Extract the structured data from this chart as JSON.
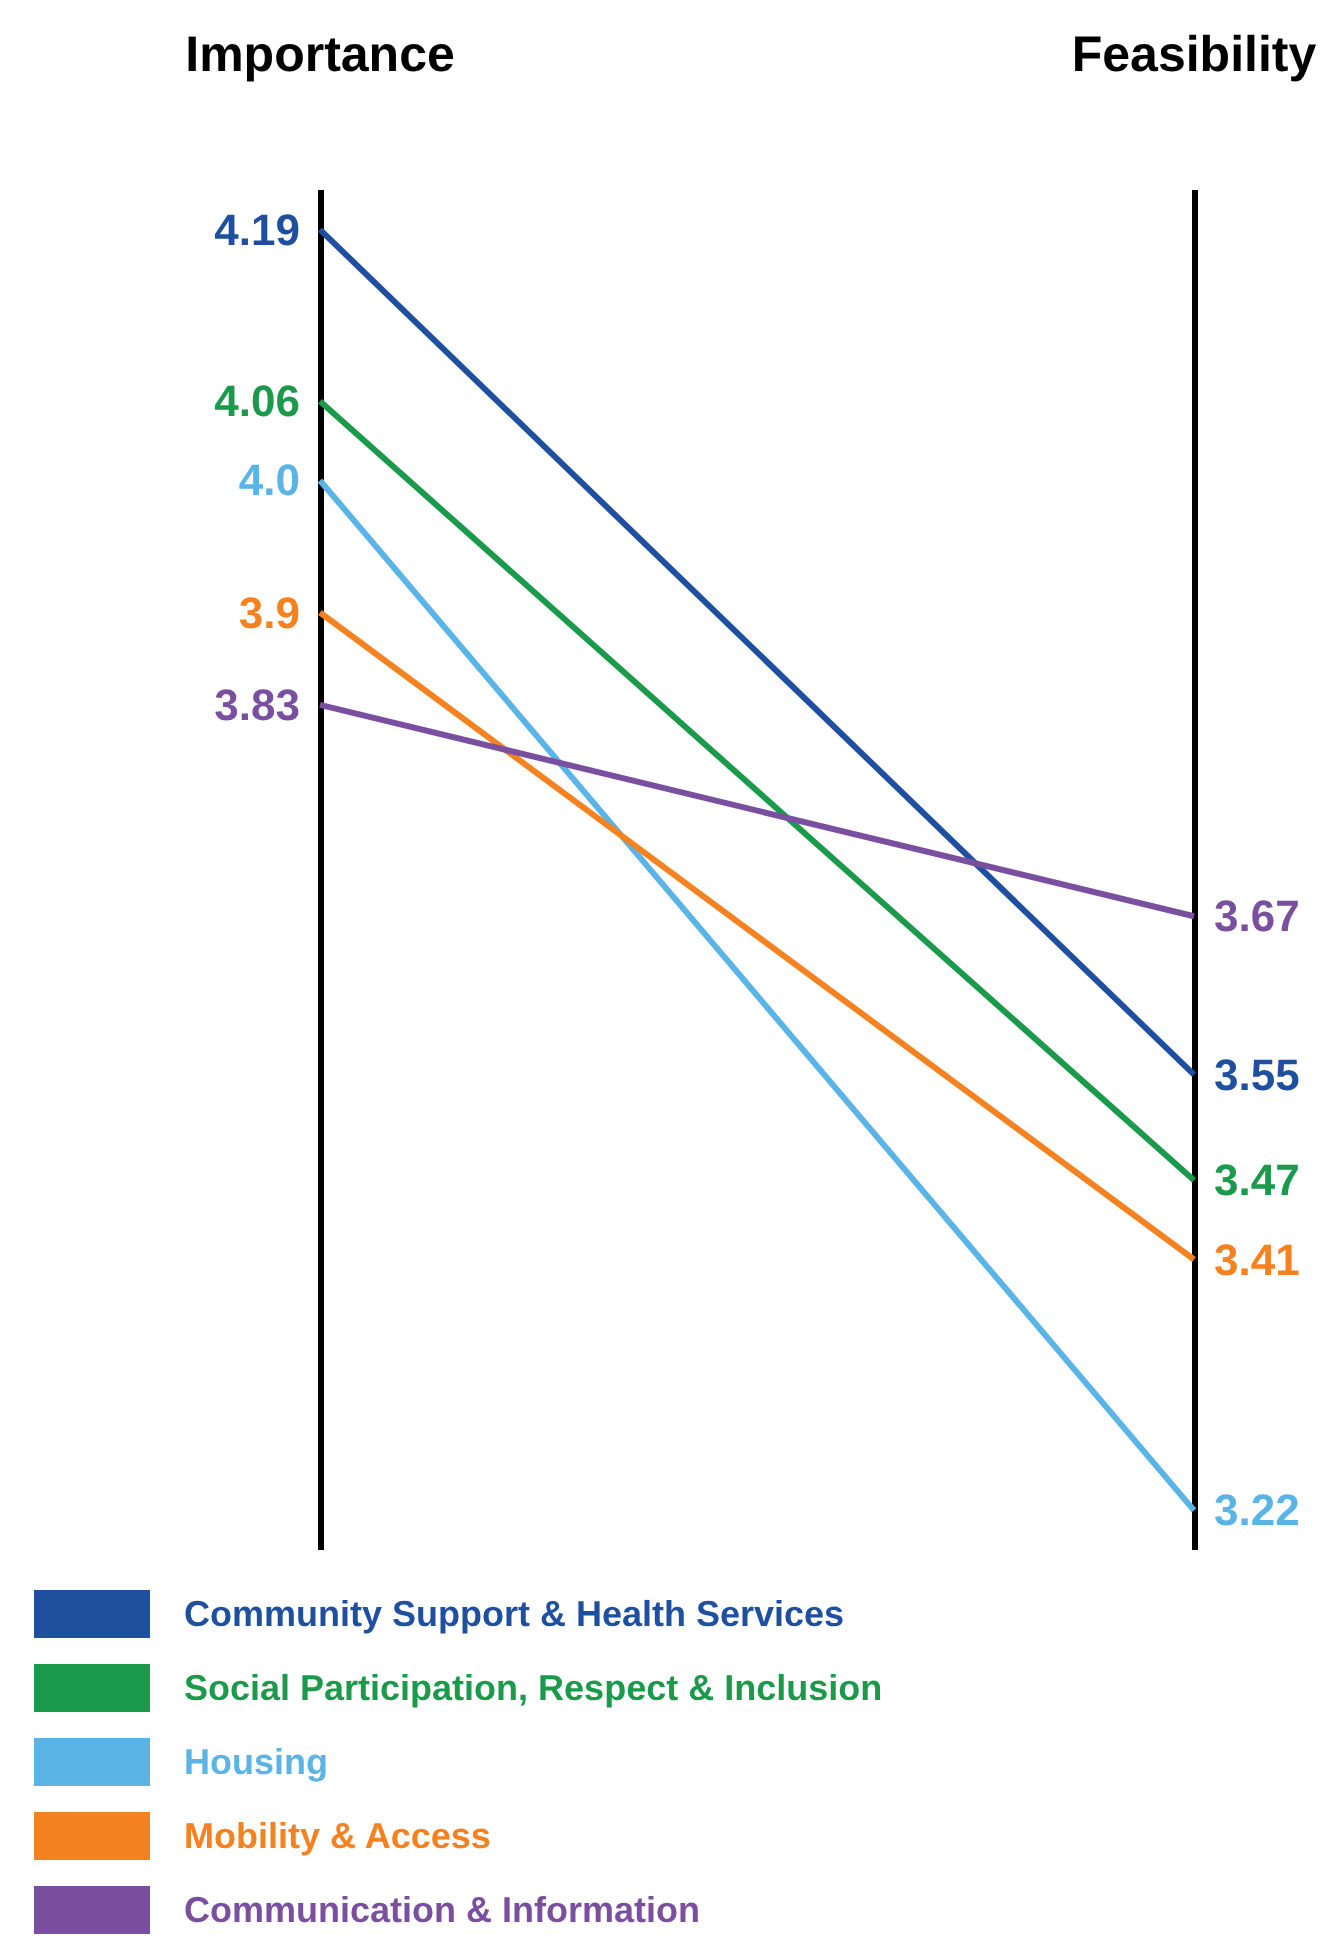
{
  "chart_data": {
    "type": "line",
    "categories": [
      "Importance",
      "Feasibility"
    ],
    "series": [
      {
        "name": "Community Support & Health Services",
        "color": "#1f4f9f",
        "values": [
          4.19,
          3.55
        ],
        "value_labels": [
          "4.19",
          "3.55"
        ]
      },
      {
        "name": "Social Participation, Respect & Inclusion",
        "color": "#1a9a4a",
        "values": [
          4.06,
          3.47
        ],
        "value_labels": [
          "4.06",
          "3.47"
        ]
      },
      {
        "name": "Housing",
        "color": "#5ab4e6",
        "values": [
          4.0,
          3.22
        ],
        "value_labels": [
          "4.0",
          "3.22"
        ]
      },
      {
        "name": "Mobility & Access",
        "color": "#f58220",
        "values": [
          3.9,
          3.41
        ],
        "value_labels": [
          "3.9",
          "3.41"
        ]
      },
      {
        "name": "Communication & Information",
        "color": "#7a4fa0",
        "values": [
          3.83,
          3.67
        ],
        "value_labels": [
          "3.83",
          "3.67"
        ]
      }
    ],
    "ylim": [
      3.19,
      4.22
    ],
    "tick_labels": "x",
    "grid": "x",
    "legend": "bottom",
    "marker": "none",
    "line_style": "solid"
  }
}
